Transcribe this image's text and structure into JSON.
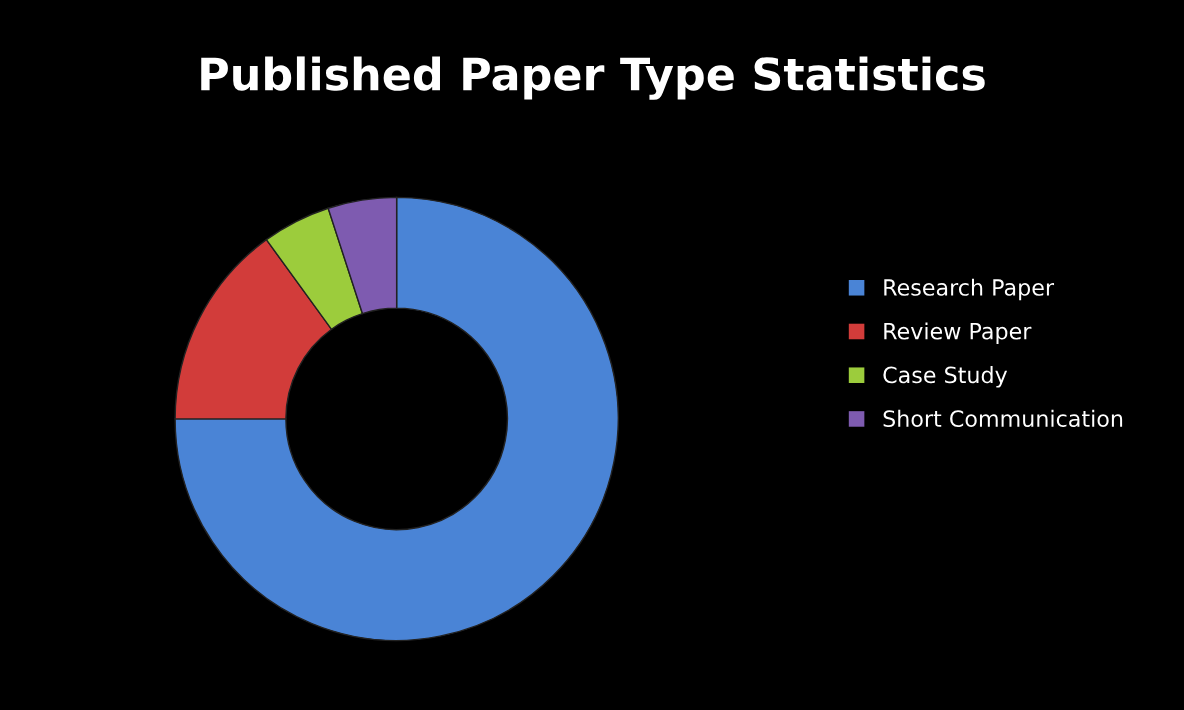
{
  "chart_data": {
    "type": "donut",
    "title": "Published Paper Type Statistics",
    "categories": [
      "Research Paper",
      "Review Paper",
      "Case Study",
      "Short Communication"
    ],
    "values": [
      75,
      15,
      5,
      5
    ],
    "colors": [
      "#4a84d6",
      "#d23c3a",
      "#9ccc3c",
      "#7e5bb0"
    ],
    "legend": "right"
  }
}
